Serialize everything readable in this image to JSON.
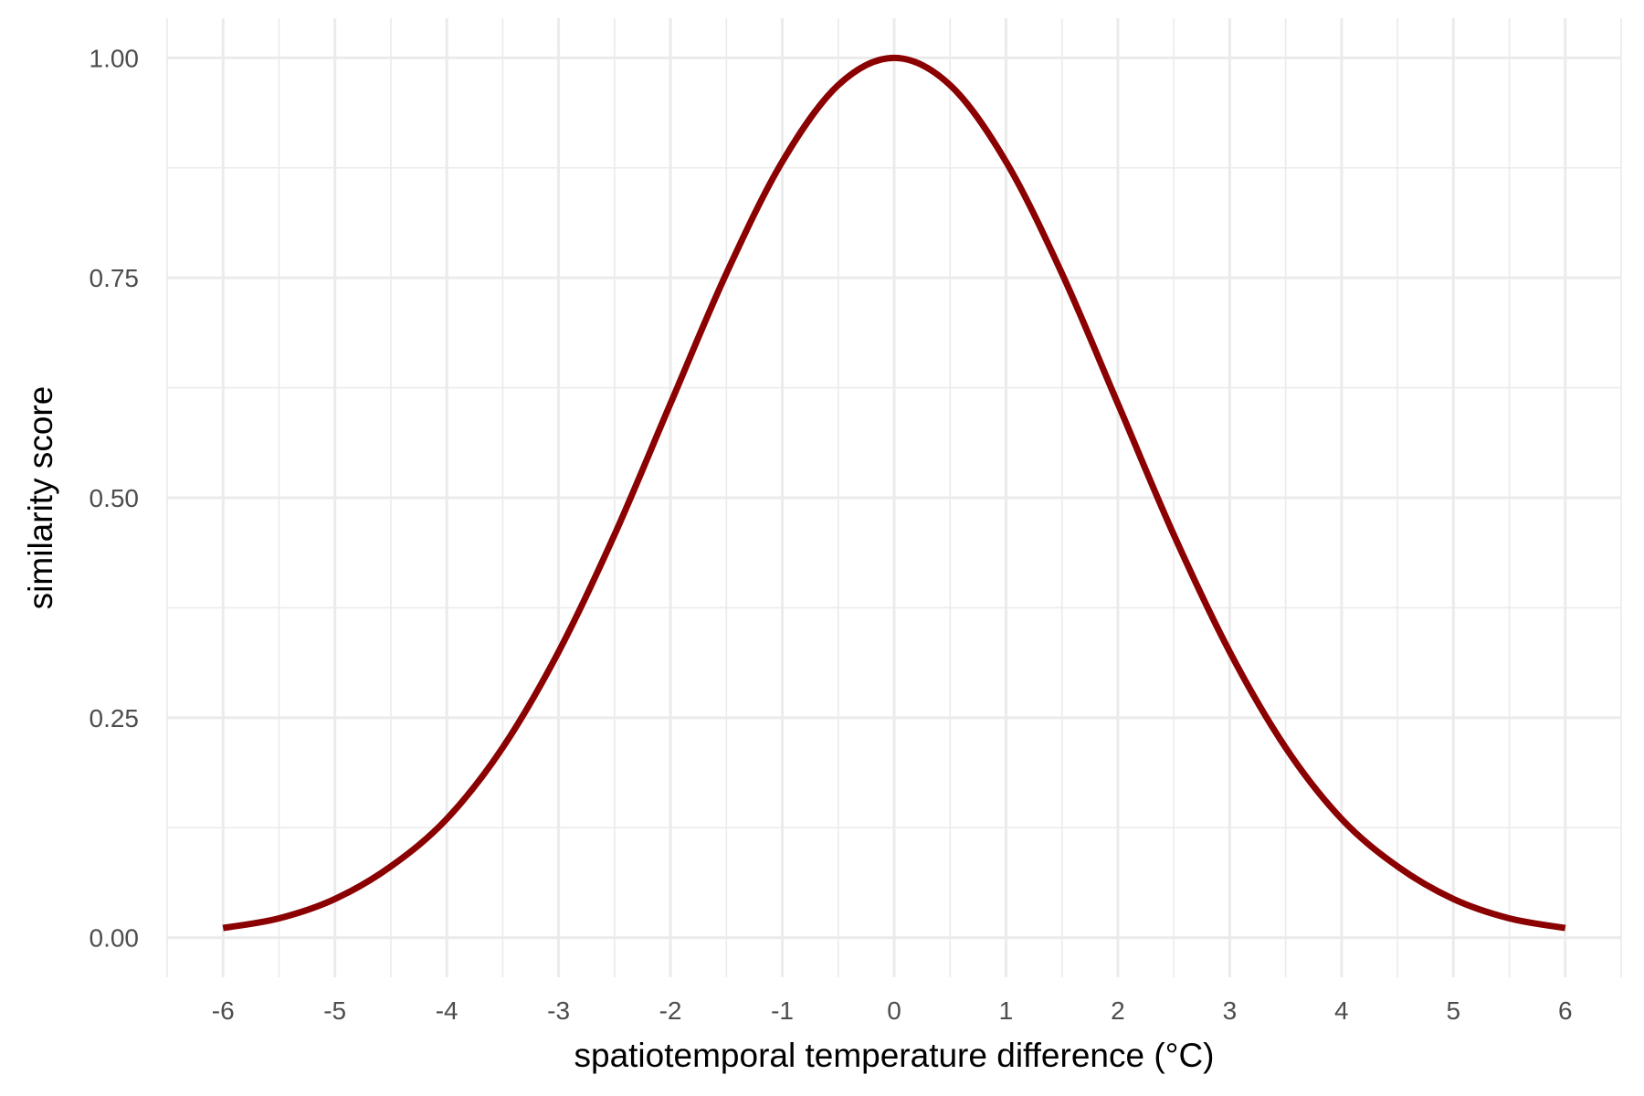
{
  "chart_data": {
    "type": "line",
    "xlabel": "spatiotemporal temperature difference (°C)",
    "ylabel": "similarity score",
    "xlim": [
      -6.5,
      6.5
    ],
    "ylim": [
      -0.045,
      1.045
    ],
    "x_ticks": [
      -6,
      -5,
      -4,
      -3,
      -2,
      -1,
      0,
      1,
      2,
      3,
      4,
      5,
      6
    ],
    "x_tick_labels": [
      "-6",
      "-5",
      "-4",
      "-3",
      "-2",
      "-1",
      "0",
      "1",
      "2",
      "3",
      "4",
      "5",
      "6"
    ],
    "y_ticks": [
      0,
      0.25,
      0.5,
      0.75,
      1
    ],
    "y_tick_labels": [
      "0.00",
      "0.25",
      "0.50",
      "0.75",
      "1.00"
    ],
    "grid": true,
    "series": [
      {
        "color": "#8b0000",
        "x": [
          -6,
          -5.5,
          -5,
          -4.5,
          -4,
          -3.5,
          -3,
          -2.5,
          -2,
          -1.5,
          -1,
          -0.5,
          0,
          0.5,
          1,
          1.5,
          2,
          2.5,
          3,
          3.5,
          4,
          4.5,
          5,
          5.5,
          6
        ],
        "y": [
          0.011,
          0.022,
          0.044,
          0.081,
          0.135,
          0.216,
          0.325,
          0.458,
          0.607,
          0.755,
          0.882,
          0.969,
          1.0,
          0.969,
          0.882,
          0.755,
          0.607,
          0.458,
          0.325,
          0.216,
          0.135,
          0.081,
          0.044,
          0.022,
          0.011
        ]
      }
    ]
  }
}
